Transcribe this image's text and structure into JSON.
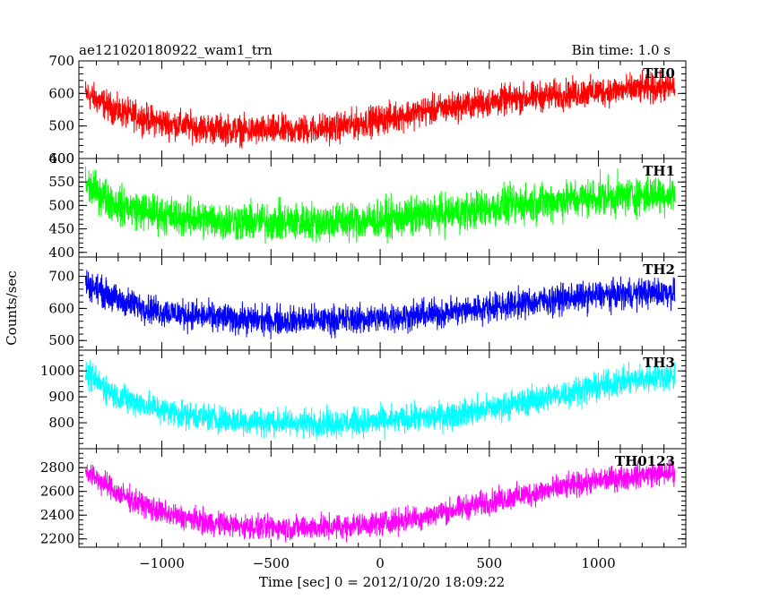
{
  "header": {
    "title": "ae121020180922_wam1_trn",
    "bin_time": "Bin time: 1.0 s"
  },
  "ylabel": "Counts/sec",
  "xlabel": "Time [sec] 0 = 2012/10/20 18:09:22",
  "chart_data": {
    "type": "line",
    "title": "ae121020180922_wam1_trn",
    "xlabel": "Time [sec] 0 = 2012/10/20 18:09:22",
    "ylabel": "Counts/sec",
    "xlim": [
      -1380,
      1400
    ],
    "x_ticks": [
      -1000,
      -500,
      0,
      500,
      1000
    ],
    "x_tick_labels": [
      "−1000",
      "−500",
      "0",
      "500",
      "1000"
    ],
    "x_range_data": [
      -1350,
      1350
    ],
    "series": [
      {
        "name": "TH0",
        "color": "#ff0000",
        "ylim": [
          400,
          700
        ],
        "yticks": [
          400,
          500,
          600,
          700
        ],
        "trend_x": [
          -1350,
          -1200,
          -1000,
          -800,
          -600,
          -400,
          -200,
          0,
          200,
          400,
          600,
          800,
          1000,
          1200,
          1350
        ],
        "trend_y": [
          600,
          545,
          510,
          493,
          485,
          487,
          495,
          520,
          545,
          565,
          582,
          595,
          606,
          614,
          620
        ],
        "noise": 42
      },
      {
        "name": "TH1",
        "color": "#00ff00",
        "ylim": [
          390,
          600
        ],
        "yticks": [
          400,
          450,
          500,
          550,
          600
        ],
        "trend_x": [
          -1350,
          -1200,
          -1000,
          -800,
          -600,
          -400,
          -200,
          0,
          200,
          400,
          600,
          800,
          1000,
          1200,
          1350
        ],
        "trend_y": [
          545,
          500,
          480,
          470,
          465,
          465,
          466,
          470,
          478,
          488,
          500,
          510,
          518,
          522,
          525
        ],
        "noise": 38
      },
      {
        "name": "TH2",
        "color": "#0000ff",
        "ylim": [
          470,
          760
        ],
        "yticks": [
          500,
          600,
          700
        ],
        "trend_x": [
          -1350,
          -1200,
          -1000,
          -800,
          -600,
          -400,
          -200,
          0,
          200,
          400,
          600,
          800,
          1000,
          1200,
          1350
        ],
        "trend_y": [
          680,
          625,
          590,
          575,
          565,
          562,
          565,
          570,
          580,
          595,
          612,
          628,
          640,
          648,
          650
        ],
        "noise": 42
      },
      {
        "name": "TH3",
        "color": "#00ffff",
        "ylim": [
          700,
          1080
        ],
        "yticks": [
          800,
          900,
          1000
        ],
        "trend_x": [
          -1350,
          -1200,
          -1000,
          -800,
          -600,
          -400,
          -200,
          0,
          200,
          400,
          600,
          800,
          1000,
          1200,
          1350
        ],
        "trend_y": [
          990,
          900,
          850,
          820,
          805,
          800,
          800,
          805,
          818,
          840,
          870,
          905,
          940,
          970,
          980
        ],
        "noise": 50
      },
      {
        "name": "TH0123",
        "color": "#ff00ff",
        "ylim": [
          2130,
          2960
        ],
        "yticks": [
          2200,
          2400,
          2600,
          2800
        ],
        "trend_x": [
          -1350,
          -1200,
          -1000,
          -800,
          -600,
          -400,
          -200,
          0,
          200,
          400,
          600,
          800,
          1000,
          1200,
          1350
        ],
        "trend_y": [
          2780,
          2580,
          2420,
          2340,
          2300,
          2295,
          2300,
          2330,
          2390,
          2470,
          2550,
          2620,
          2690,
          2740,
          2760
        ],
        "noise": 95
      }
    ],
    "grid": false,
    "legend": "inside top-right of each panel"
  }
}
